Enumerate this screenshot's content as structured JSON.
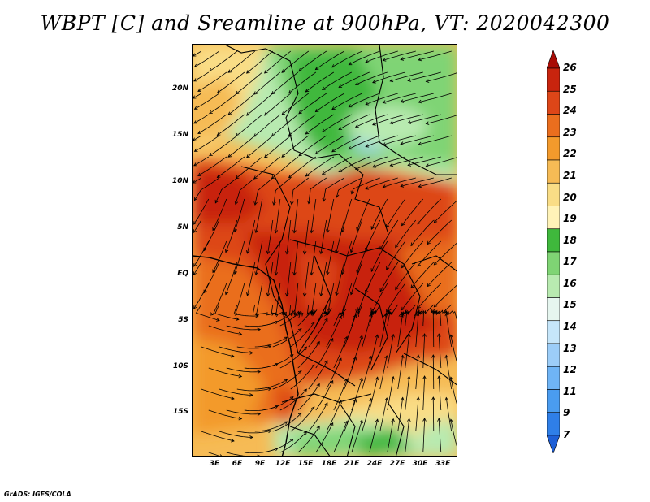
{
  "title": "WBPT [C] and Sreamline at 900hPa, VT: 2020042300",
  "footer": "GrADS: IGES/COLA",
  "map": {
    "region": "Central and Southern Africa",
    "lat_ticks": [
      "20N",
      "15N",
      "10N",
      "5N",
      "EQ",
      "5S",
      "10S",
      "15S"
    ],
    "lon_ticks": [
      "3E",
      "6E",
      "9E",
      "12E",
      "15E",
      "18E",
      "21E",
      "24E",
      "27E",
      "30E",
      "33E"
    ]
  },
  "colorbar": {
    "levels": [
      "7",
      "9",
      "11",
      "12",
      "13",
      "14",
      "15",
      "16",
      "17",
      "18",
      "19",
      "20",
      "21",
      "22",
      "23",
      "24",
      "25",
      "26"
    ],
    "colors": [
      "#1e5fd6",
      "#2f7fe8",
      "#4a9cf0",
      "#6fb4f5",
      "#9ccdf8",
      "#c6e6fa",
      "#e6f6ef",
      "#b8eab0",
      "#7fd474",
      "#3fb83c",
      "#fff3b8",
      "#f9dd86",
      "#f6bb55",
      "#f39a2c",
      "#ea6e1e",
      "#dd4618",
      "#c8240e",
      "#a80c06"
    ]
  }
}
